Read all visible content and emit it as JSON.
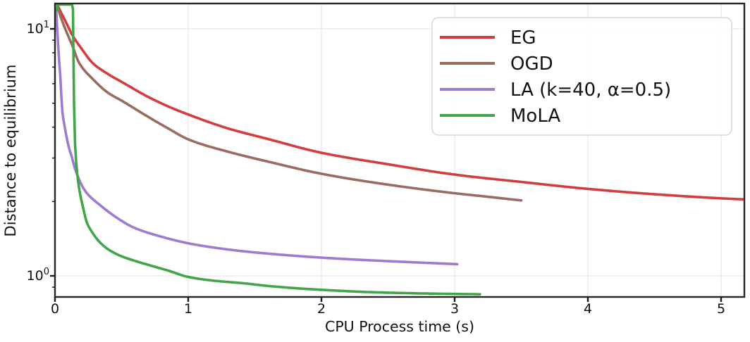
{
  "chart_data": {
    "type": "line",
    "title": "",
    "xlabel": "CPU Process time (s)",
    "ylabel": "Distance to equilibrium",
    "x_axis": {
      "min": 0,
      "max": 5.17,
      "ticks": [
        0,
        1,
        2,
        3,
        4,
        5
      ],
      "grid": true
    },
    "y_axis": {
      "scale": "log",
      "min": 0.82,
      "max": 12.66,
      "major_ticks": [
        {
          "value": 1,
          "base": "10",
          "exponent": "0"
        },
        {
          "value": 10,
          "base": "10",
          "exponent": "1"
        }
      ],
      "minor_ticks": [
        0.9,
        2,
        3,
        4,
        5,
        6,
        7,
        8,
        9
      ],
      "grid": true
    },
    "legend": {
      "position": "upper right",
      "entries": [
        "EG",
        "OGD",
        "LA (k=40, α=0.5)",
        "MoLA"
      ]
    },
    "series": [
      {
        "name": "EG",
        "color": "#d43d3d",
        "points": [
          [
            0.013,
            12.66
          ],
          [
            0.04,
            11.8
          ],
          [
            0.08,
            10.7
          ],
          [
            0.132,
            9.4
          ],
          [
            0.2,
            8.3
          ],
          [
            0.285,
            7.25
          ],
          [
            0.4,
            6.55
          ],
          [
            0.5,
            6.1
          ],
          [
            0.7,
            5.3
          ],
          [
            0.85,
            4.85
          ],
          [
            1.0,
            4.5
          ],
          [
            1.3,
            3.95
          ],
          [
            1.6,
            3.58
          ],
          [
            2.0,
            3.15
          ],
          [
            2.5,
            2.83
          ],
          [
            3.0,
            2.57
          ],
          [
            3.5,
            2.4
          ],
          [
            4.0,
            2.25
          ],
          [
            4.5,
            2.14
          ],
          [
            5.0,
            2.06
          ],
          [
            5.17,
            2.04
          ]
        ]
      },
      {
        "name": "OGD",
        "color": "#9a6c5f",
        "points": [
          [
            0.013,
            12.66
          ],
          [
            0.04,
            11.3
          ],
          [
            0.08,
            9.9
          ],
          [
            0.132,
            8.5
          ],
          [
            0.18,
            7.3
          ],
          [
            0.285,
            6.25
          ],
          [
            0.4,
            5.5
          ],
          [
            0.5,
            5.12
          ],
          [
            0.7,
            4.4
          ],
          [
            0.85,
            3.95
          ],
          [
            1.0,
            3.57
          ],
          [
            1.3,
            3.18
          ],
          [
            1.6,
            2.9
          ],
          [
            2.0,
            2.59
          ],
          [
            2.5,
            2.34
          ],
          [
            3.0,
            2.16
          ],
          [
            3.25,
            2.09
          ],
          [
            3.5,
            2.02
          ]
        ]
      },
      {
        "name": "LA (k=40, α=0.5)",
        "color": "#9d7bce",
        "points": [
          [
            0.008,
            12.2
          ],
          [
            0.02,
            9.3
          ],
          [
            0.03,
            7.6
          ],
          [
            0.042,
            6.2
          ],
          [
            0.053,
            4.75
          ],
          [
            0.07,
            4.1
          ],
          [
            0.085,
            3.7
          ],
          [
            0.105,
            3.3
          ],
          [
            0.127,
            3.02
          ],
          [
            0.15,
            2.72
          ],
          [
            0.17,
            2.54
          ],
          [
            0.21,
            2.28
          ],
          [
            0.25,
            2.13
          ],
          [
            0.33,
            1.95
          ],
          [
            0.45,
            1.74
          ],
          [
            0.59,
            1.57
          ],
          [
            0.8,
            1.44
          ],
          [
            1.0,
            1.355
          ],
          [
            1.2,
            1.3
          ],
          [
            1.4,
            1.26
          ],
          [
            1.64,
            1.225
          ],
          [
            1.9,
            1.195
          ],
          [
            2.2,
            1.168
          ],
          [
            2.5,
            1.147
          ],
          [
            2.8,
            1.128
          ],
          [
            3.02,
            1.115
          ]
        ]
      },
      {
        "name": "MoLA",
        "color": "#44a449",
        "points": [
          [
            0.016,
            11.9
          ],
          [
            0.018,
            12.55
          ],
          [
            0.134,
            12.55
          ],
          [
            0.139,
            7.5
          ],
          [
            0.143,
            5.0
          ],
          [
            0.149,
            3.6
          ],
          [
            0.16,
            2.85
          ],
          [
            0.17,
            2.5
          ],
          [
            0.185,
            2.2
          ],
          [
            0.21,
            1.9
          ],
          [
            0.24,
            1.64
          ],
          [
            0.28,
            1.5
          ],
          [
            0.33,
            1.38
          ],
          [
            0.4,
            1.28
          ],
          [
            0.5,
            1.2
          ],
          [
            0.6,
            1.15
          ],
          [
            0.72,
            1.1
          ],
          [
            0.85,
            1.05
          ],
          [
            1.0,
            0.99
          ],
          [
            1.2,
            0.955
          ],
          [
            1.4,
            0.935
          ],
          [
            1.64,
            0.906
          ],
          [
            2.0,
            0.878
          ],
          [
            2.4,
            0.858
          ],
          [
            2.8,
            0.848
          ],
          [
            3.19,
            0.842
          ]
        ]
      }
    ],
    "style_colors": {
      "grid": "#e7e7e7",
      "spine": "#262626",
      "tick": "#1a1a1a",
      "text": "#111111",
      "legend_border": "#d7d7d7",
      "legend_bg": "rgba(255,255,255,0.85)"
    }
  }
}
